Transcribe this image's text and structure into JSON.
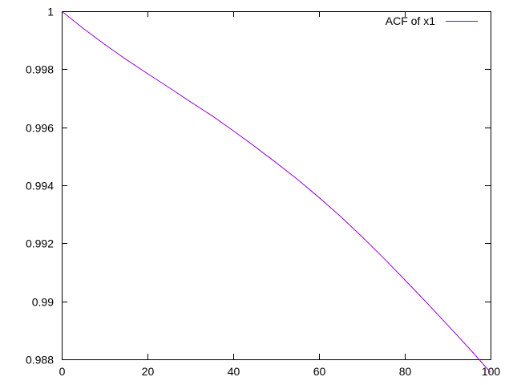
{
  "chart_data": {
    "type": "line",
    "title": "",
    "xlabel": "",
    "ylabel": "",
    "xlim": [
      0,
      100
    ],
    "ylim": [
      0.988,
      1.0
    ],
    "x_ticks": [
      0,
      20,
      40,
      60,
      80,
      100
    ],
    "x_tick_labels": [
      "0",
      "20",
      "40",
      "60",
      "80",
      "100"
    ],
    "y_ticks": [
      0.988,
      0.99,
      0.992,
      0.994,
      0.996,
      0.998,
      1.0
    ],
    "y_tick_labels": [
      "0.988",
      "0.99",
      "0.992",
      "0.994",
      "0.996",
      "0.998",
      "1"
    ],
    "grid": false,
    "legend_position": "top-right",
    "series": [
      {
        "name": "ACF of x1",
        "color": "#9400d3",
        "x": [
          0,
          5,
          10,
          15,
          20,
          25,
          30,
          35,
          40,
          45,
          50,
          55,
          60,
          65,
          70,
          75,
          80,
          85,
          90,
          95,
          100
        ],
        "values": [
          1.0,
          0.99941,
          0.99886,
          0.99834,
          0.99785,
          0.99737,
          0.99688,
          0.9964,
          0.99588,
          0.99534,
          0.99478,
          0.9942,
          0.99358,
          0.99293,
          0.99223,
          0.9915,
          0.99074,
          0.98997,
          0.98918,
          0.98838,
          0.98755
        ]
      }
    ]
  }
}
